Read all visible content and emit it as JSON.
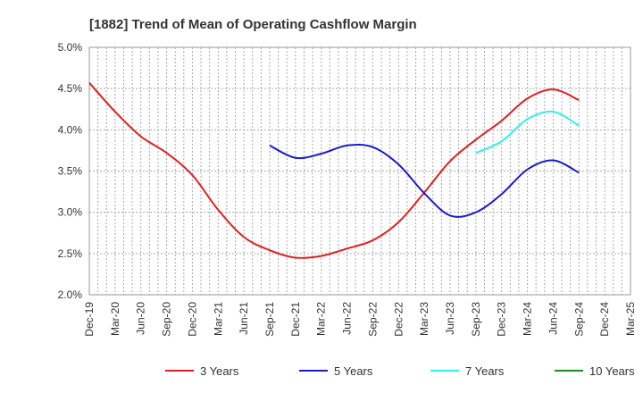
{
  "chart_data": {
    "type": "line",
    "title": "[1882]  Trend of Mean of Operating Cashflow Margin",
    "xlabel": "",
    "ylabel": "",
    "x_ticks": [
      "Dec-19",
      "Mar-20",
      "Jun-20",
      "Sep-20",
      "Dec-20",
      "Mar-21",
      "Jun-21",
      "Sep-21",
      "Dec-21",
      "Mar-22",
      "Jun-22",
      "Sep-22",
      "Dec-22",
      "Mar-23",
      "Jun-23",
      "Sep-23",
      "Dec-23",
      "Mar-24",
      "Jun-24",
      "Sep-24",
      "Dec-24",
      "Mar-25"
    ],
    "y_ticks": [
      "2.0%",
      "2.5%",
      "3.0%",
      "3.5%",
      "4.0%",
      "4.5%",
      "5.0%"
    ],
    "ylim": [
      2.0,
      5.0
    ],
    "grid": true,
    "legend_position": "bottom",
    "series": [
      {
        "name": "3 Years",
        "color": "#e02020",
        "points": [
          [
            "Dec-19",
            4.57
          ],
          [
            "Mar-20",
            4.22
          ],
          [
            "Jun-20",
            3.92
          ],
          [
            "Sep-20",
            3.72
          ],
          [
            "Dec-20",
            3.45
          ],
          [
            "Mar-21",
            3.03
          ],
          [
            "Jun-21",
            2.7
          ],
          [
            "Sep-21",
            2.54
          ],
          [
            "Dec-21",
            2.45
          ],
          [
            "Mar-22",
            2.47
          ],
          [
            "Jun-22",
            2.56
          ],
          [
            "Sep-22",
            2.66
          ],
          [
            "Dec-22",
            2.88
          ],
          [
            "Mar-23",
            3.24
          ],
          [
            "Jun-23",
            3.62
          ],
          [
            "Sep-23",
            3.88
          ],
          [
            "Dec-23",
            4.11
          ],
          [
            "Mar-24",
            4.38
          ],
          [
            "Jun-24",
            4.49
          ],
          [
            "Sep-24",
            4.36
          ]
        ]
      },
      {
        "name": "5 Years",
        "color": "#1a1acc",
        "points": [
          [
            "Sep-21",
            3.81
          ],
          [
            "Dec-21",
            3.66
          ],
          [
            "Mar-22",
            3.71
          ],
          [
            "Jun-22",
            3.81
          ],
          [
            "Sep-22",
            3.79
          ],
          [
            "Dec-22",
            3.58
          ],
          [
            "Mar-23",
            3.23
          ],
          [
            "Jun-23",
            2.96
          ],
          [
            "Sep-23",
            3.0
          ],
          [
            "Dec-23",
            3.22
          ],
          [
            "Mar-24",
            3.52
          ],
          [
            "Jun-24",
            3.63
          ],
          [
            "Sep-24",
            3.48
          ]
        ]
      },
      {
        "name": "7 Years",
        "color": "#33eeee",
        "points": [
          [
            "Sep-23",
            3.72
          ],
          [
            "Dec-23",
            3.86
          ],
          [
            "Mar-24",
            4.13
          ],
          [
            "Jun-24",
            4.22
          ],
          [
            "Sep-24",
            4.05
          ]
        ]
      },
      {
        "name": "10 Years",
        "color": "#1e8c1e",
        "points": []
      }
    ]
  }
}
